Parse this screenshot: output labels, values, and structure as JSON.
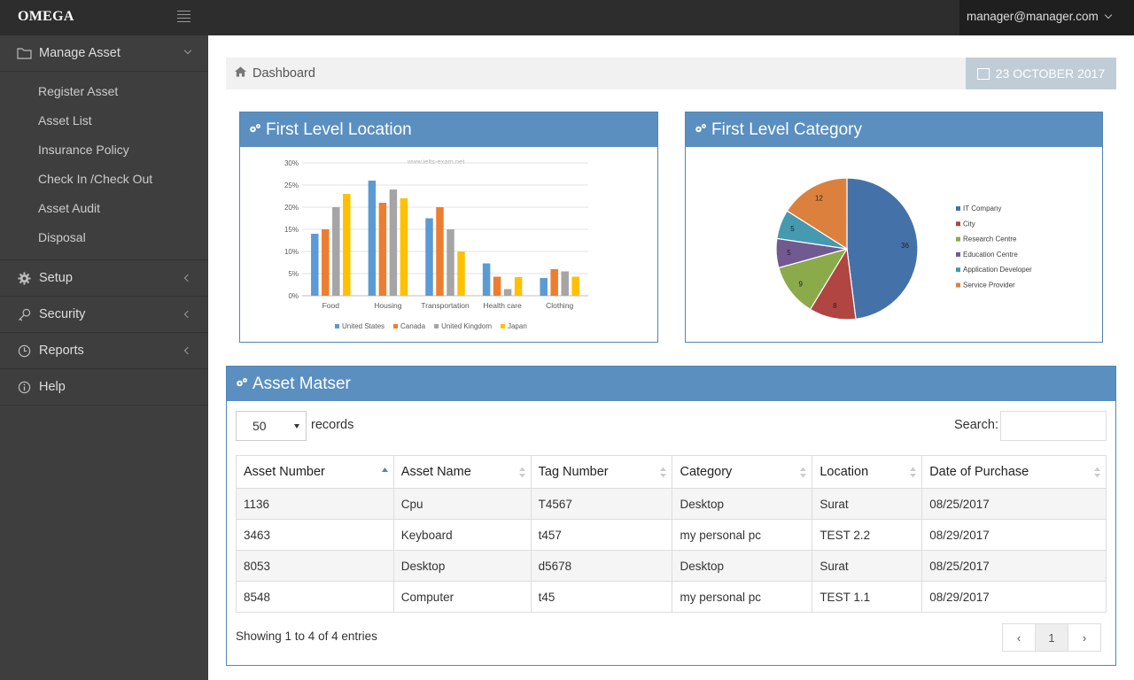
{
  "app": {
    "logo": "OMEGA"
  },
  "header": {
    "user": "manager@manager.com"
  },
  "sidebar": {
    "sections": [
      {
        "label": "Manage Asset",
        "expanded": true,
        "items": [
          "Register Asset",
          "Asset List",
          "Insurance Policy",
          "Check In /Check Out",
          "Asset Audit",
          "Disposal"
        ]
      },
      {
        "label": "Setup"
      },
      {
        "label": "Security"
      },
      {
        "label": "Reports"
      },
      {
        "label": "Help"
      }
    ]
  },
  "breadcrumb": {
    "title": "Dashboard",
    "date": "23 OCTOBER 2017"
  },
  "panels": {
    "location_title": "First Level Location",
    "category_title": "First Level Category",
    "table_title": "Asset Matser"
  },
  "chart_data": [
    {
      "type": "bar",
      "watermark": "www.ielts-exam.net",
      "categories": [
        "Food",
        "Housing",
        "Transportation",
        "Health care",
        "Clothing"
      ],
      "ylim": [
        0,
        30
      ],
      "yticks": [
        "0%",
        "5%",
        "10%",
        "15%",
        "20%",
        "25%",
        "30%"
      ],
      "series": [
        {
          "name": "United States",
          "color": "#5b9bd5",
          "values": [
            14,
            26,
            17.5,
            7.3,
            4
          ]
        },
        {
          "name": "Canada",
          "color": "#ed7d31",
          "values": [
            15,
            21,
            20,
            4.3,
            6
          ]
        },
        {
          "name": "United Kingdom",
          "color": "#a5a5a5",
          "values": [
            20,
            24,
            15,
            1.5,
            5.5
          ]
        },
        {
          "name": "Japan",
          "color": "#ffc000",
          "values": [
            23,
            22,
            10,
            4.2,
            4.3
          ]
        }
      ],
      "legend": "bottom"
    },
    {
      "type": "pie",
      "slices": [
        {
          "name": "IT Company",
          "value": 36,
          "color": "#4472a8"
        },
        {
          "name": "City",
          "value": 8,
          "color": "#b04542"
        },
        {
          "name": "Research Centre",
          "value": 9,
          "color": "#8baa4a"
        },
        {
          "name": "Education Centre",
          "value": 5,
          "color": "#705a91"
        },
        {
          "name": "Application Developer",
          "value": 5,
          "color": "#4599b0"
        },
        {
          "name": "Service Provider",
          "value": 12,
          "color": "#dc813d"
        }
      ],
      "legend": "right"
    }
  ],
  "table": {
    "length_value": "50",
    "records_label": "records",
    "search_label": "Search:",
    "columns": [
      "Asset Number",
      "Asset Name",
      "Tag Number",
      "Category",
      "Location",
      "Date of Purchase"
    ],
    "rows": [
      [
        "1136",
        "Cpu",
        "T4567",
        "Desktop",
        "Surat",
        "08/25/2017"
      ],
      [
        "3463",
        "Keyboard",
        "t457",
        "my personal pc",
        "TEST 2.2",
        "08/29/2017"
      ],
      [
        "8053",
        "Desktop",
        "d5678",
        "Desktop",
        "Surat",
        "08/25/2017"
      ],
      [
        "8548",
        "Computer",
        "t45",
        "my personal pc",
        "TEST 1.1",
        "08/29/2017"
      ]
    ],
    "info": "Showing 1 to 4 of 4 entries",
    "pager": {
      "prev": "‹",
      "page": "1",
      "next": "›"
    }
  }
}
